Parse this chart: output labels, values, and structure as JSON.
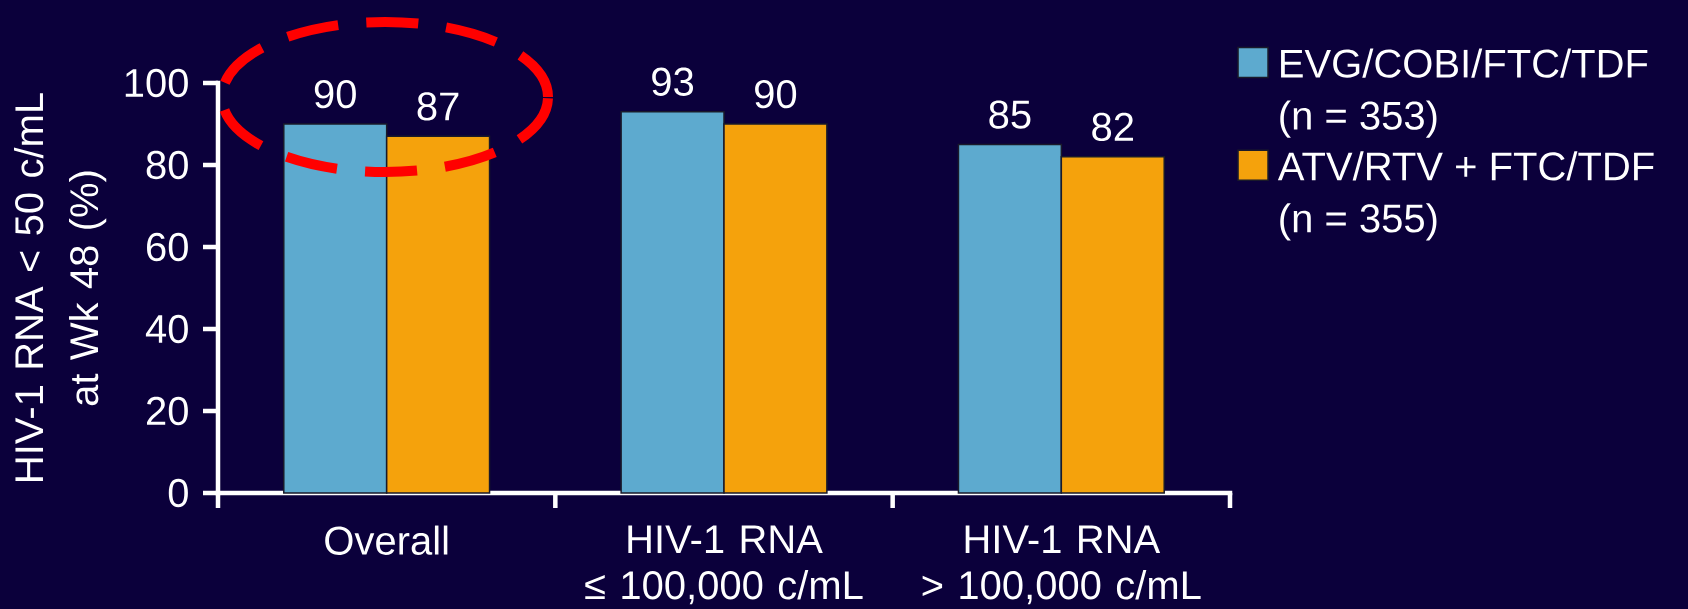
{
  "chart_data": {
    "type": "bar",
    "categories": [
      "Overall",
      "HIV-1 RNA ≤ 100,000 c/mL",
      "HIV-1 RNA > 100,000 c/mL"
    ],
    "ylabel": "HIV-1 RNA < 50 c/mL at Wk 48 (%)",
    "series": [
      {
        "name": "EVG/COBI/FTC/TDF (n = 353)",
        "color": "#5DAACF",
        "values": [
          90,
          93,
          85
        ]
      },
      {
        "name": "ATV/RTV + FTC/TDF (n = 355)",
        "color": "#F5A20C",
        "values": [
          87,
          90,
          82
        ]
      }
    ],
    "ylim": [
      0,
      100
    ],
    "yticks": [
      0,
      20,
      40,
      60,
      80,
      100
    ],
    "data_labels": true,
    "legend": "top right"
  }
}
